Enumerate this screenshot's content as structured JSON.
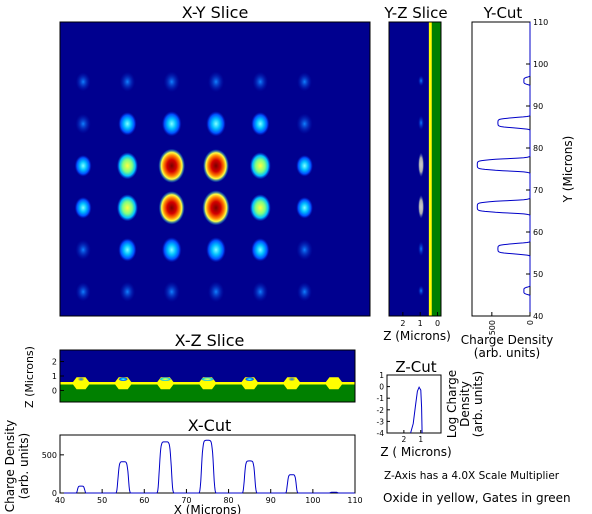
{
  "colors": {
    "background": "#00008f",
    "oxide": "#ffff00",
    "gate": "#008000",
    "line": "#0000c8",
    "hot": "#b40000",
    "warm": "#ffff00",
    "cool": "#00c0ff"
  },
  "notes": {
    "scale": "Z-Axis has a 4.0X Scale Multiplier",
    "legend": "Oxide in yellow, Gates in green"
  },
  "chart_data": [
    {
      "id": "xy",
      "type": "heatmap",
      "title": "X-Y Slice",
      "xlim": [
        40,
        110
      ],
      "ylim": [
        40,
        110
      ],
      "spots": [
        {
          "x": 45,
          "y": 46,
          "v": 0.05
        },
        {
          "x": 55,
          "y": 46,
          "v": 0.1
        },
        {
          "x": 65,
          "y": 46,
          "v": 0.15
        },
        {
          "x": 75,
          "y": 46,
          "v": 0.15
        },
        {
          "x": 85,
          "y": 46,
          "v": 0.1
        },
        {
          "x": 95,
          "y": 46,
          "v": 0.05
        },
        {
          "x": 45,
          "y": 56,
          "v": 0.1
        },
        {
          "x": 55,
          "y": 56,
          "v": 0.3
        },
        {
          "x": 65,
          "y": 56,
          "v": 0.4
        },
        {
          "x": 75,
          "y": 56,
          "v": 0.4
        },
        {
          "x": 85,
          "y": 56,
          "v": 0.3
        },
        {
          "x": 95,
          "y": 56,
          "v": 0.15
        },
        {
          "x": 45,
          "y": 66,
          "v": 0.2
        },
        {
          "x": 55,
          "y": 66,
          "v": 0.5
        },
        {
          "x": 65,
          "y": 66,
          "v": 0.85
        },
        {
          "x": 75,
          "y": 66,
          "v": 0.95
        },
        {
          "x": 85,
          "y": 66,
          "v": 0.5
        },
        {
          "x": 95,
          "y": 66,
          "v": 0.2
        },
        {
          "x": 45,
          "y": 76,
          "v": 0.2
        },
        {
          "x": 55,
          "y": 76,
          "v": 0.5
        },
        {
          "x": 65,
          "y": 76,
          "v": 0.9
        },
        {
          "x": 75,
          "y": 76,
          "v": 0.85
        },
        {
          "x": 85,
          "y": 76,
          "v": 0.5
        },
        {
          "x": 95,
          "y": 76,
          "v": 0.2
        },
        {
          "x": 45,
          "y": 86,
          "v": 0.1
        },
        {
          "x": 55,
          "y": 86,
          "v": 0.3
        },
        {
          "x": 65,
          "y": 86,
          "v": 0.4
        },
        {
          "x": 75,
          "y": 86,
          "v": 0.4
        },
        {
          "x": 85,
          "y": 86,
          "v": 0.3
        },
        {
          "x": 95,
          "y": 86,
          "v": 0.15
        },
        {
          "x": 45,
          "y": 96,
          "v": 0.05
        },
        {
          "x": 55,
          "y": 96,
          "v": 0.1
        },
        {
          "x": 65,
          "y": 96,
          "v": 0.15
        },
        {
          "x": 75,
          "y": 96,
          "v": 0.15
        },
        {
          "x": 85,
          "y": 96,
          "v": 0.1
        },
        {
          "x": 95,
          "y": 96,
          "v": 0.05
        }
      ]
    },
    {
      "id": "yz",
      "type": "heatmap",
      "title": "Y-Z Slice",
      "xlabel": "Z (Microns)",
      "xlim": [
        2.8,
        -0.2
      ],
      "xticks": [
        2,
        1,
        0
      ],
      "ylim": [
        40,
        110
      ],
      "oxide_z": 0.5,
      "spots": [
        {
          "y": 46,
          "v": 0.05
        },
        {
          "y": 56,
          "v": 0.3
        },
        {
          "y": 66,
          "v": 0.85
        },
        {
          "y": 76,
          "v": 0.9
        },
        {
          "y": 86,
          "v": 0.3
        },
        {
          "y": 96,
          "v": 0.05
        }
      ]
    },
    {
      "id": "ycut",
      "type": "line",
      "title": "Y-Cut",
      "xlabel": "Charge Density\n(arb. units)",
      "ylabel": "Y (Microns)",
      "xlim": [
        760,
        0
      ],
      "xticks": [
        500,
        0
      ],
      "ylim": [
        40,
        110
      ],
      "yticks": [
        40,
        50,
        60,
        70,
        80,
        90,
        100,
        110
      ],
      "peaks": [
        {
          "y": 46,
          "v": 80,
          "w": 0.9
        },
        {
          "y": 56,
          "v": 420,
          "w": 1.3
        },
        {
          "y": 66,
          "v": 690,
          "w": 1.5
        },
        {
          "y": 76,
          "v": 690,
          "w": 1.5
        },
        {
          "y": 86,
          "v": 420,
          "w": 1.3
        },
        {
          "y": 96,
          "v": 80,
          "w": 0.9
        }
      ]
    },
    {
      "id": "xz",
      "type": "heatmap",
      "title": "X-Z Slice",
      "ylabel": "Z (Microns)",
      "xlim": [
        40,
        110
      ],
      "ylim": [
        -0.8,
        2.8
      ],
      "yticks": [
        0,
        1,
        2
      ],
      "oxide_z": 0.5,
      "gates": [
        45,
        55,
        65,
        75,
        85,
        95,
        105
      ],
      "spots": [
        {
          "x": 45,
          "v": 0.05
        },
        {
          "x": 55,
          "v": 0.3
        },
        {
          "x": 65,
          "v": 0.5
        },
        {
          "x": 75,
          "v": 0.6
        },
        {
          "x": 85,
          "v": 0.3
        },
        {
          "x": 95,
          "v": 0.1
        }
      ]
    },
    {
      "id": "xcut",
      "type": "line",
      "title": "X-Cut",
      "xlabel": "X (Microns)",
      "ylabel": "Charge Density\n(arb. units)",
      "xlim": [
        40,
        110
      ],
      "xticks": [
        40,
        50,
        60,
        70,
        80,
        90,
        100,
        110
      ],
      "ylim": [
        0,
        760
      ],
      "yticks": [
        0,
        500
      ],
      "peaks": [
        {
          "x": 45,
          "v": 90,
          "w": 0.9
        },
        {
          "x": 55,
          "v": 410,
          "w": 1.3
        },
        {
          "x": 65,
          "v": 670,
          "w": 1.5
        },
        {
          "x": 75,
          "v": 690,
          "w": 1.5
        },
        {
          "x": 85,
          "v": 420,
          "w": 1.3
        },
        {
          "x": 95,
          "v": 240,
          "w": 1.1
        },
        {
          "x": 105,
          "v": 10,
          "w": 0.9
        }
      ]
    },
    {
      "id": "zcut",
      "type": "line",
      "title": "Z-Cut",
      "xlabel": "Z ( Microns)",
      "ylabel": "Log Charge\nDensity\n(arb. units)",
      "xlim": [
        3.0,
        -0.2
      ],
      "xticks": [
        2,
        1
      ],
      "ylim": [
        -4,
        1
      ],
      "yticks": [
        1,
        0,
        -1,
        -2,
        -3,
        -4
      ],
      "curve": [
        [
          1.6,
          -4
        ],
        [
          1.45,
          -3.2
        ],
        [
          1.3,
          -1.5
        ],
        [
          1.2,
          -0.4
        ],
        [
          1.1,
          -0.05
        ],
        [
          1.0,
          -0.3
        ],
        [
          0.95,
          -1.8
        ],
        [
          0.92,
          -4
        ]
      ]
    }
  ]
}
